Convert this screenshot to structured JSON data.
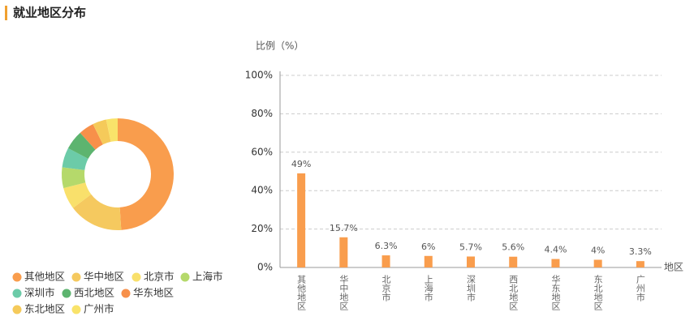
{
  "header": {
    "title": "就业地区分布"
  },
  "chart_data": [
    {
      "type": "pie",
      "donut": true,
      "categories": [
        "其他地区",
        "华中地区",
        "北京市",
        "上海市",
        "深圳市",
        "西北地区",
        "华东地区",
        "东北地区",
        "广州市"
      ],
      "values": [
        49,
        15.7,
        6.3,
        6,
        5.7,
        5.6,
        4.4,
        4,
        3.3
      ],
      "colors": [
        "#f99d4d",
        "#f5c95f",
        "#f9e06b",
        "#b5d96b",
        "#6ccba8",
        "#5db46f",
        "#f7904a",
        "#f5ca5a",
        "#f9e36a"
      ]
    },
    {
      "type": "bar",
      "y_label": "比例（%）",
      "x_label": "地区",
      "categories": [
        "其他地区",
        "华中地区",
        "北京市",
        "上海市",
        "深圳市",
        "西北地区",
        "华东地区",
        "东北地区",
        "广州市"
      ],
      "values": [
        49,
        15.7,
        6.3,
        6,
        5.7,
        5.6,
        4.4,
        4,
        3.3
      ],
      "value_labels": [
        "49%",
        "15.7%",
        "6.3%",
        "6%",
        "5.7%",
        "5.6%",
        "4.4%",
        "4%",
        "3.3%"
      ],
      "color": "#f99d4d",
      "ylim": [
        0,
        100
      ],
      "yticks": [
        {
          "value": 0,
          "label": "0%"
        },
        {
          "value": 20,
          "label": "20%"
        },
        {
          "value": 40,
          "label": "40%"
        },
        {
          "value": 60,
          "label": "60%"
        },
        {
          "value": 80,
          "label": "80%"
        },
        {
          "value": 100,
          "label": "100%"
        }
      ],
      "grid": true
    }
  ]
}
